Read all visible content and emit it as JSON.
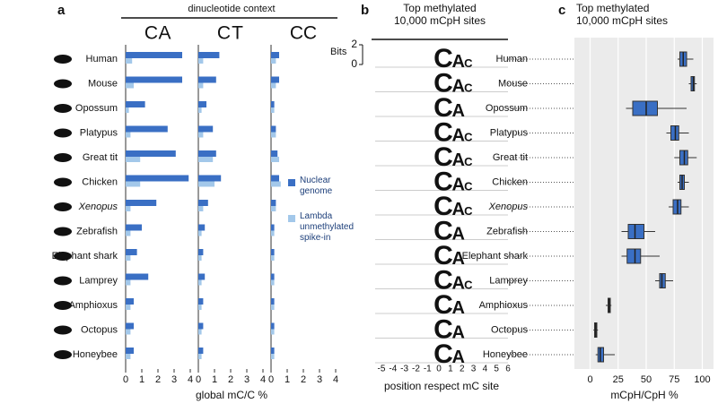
{
  "chart_data": [
    {
      "type": "bar",
      "panel_label": "a",
      "title": "dinucleotide context",
      "xlabel": "global mC/C %",
      "categories": [
        "Human",
        "Mouse",
        "Opossum",
        "Platypus",
        "Great tit",
        "Chicken",
        "Xenopus",
        "Zebrafish",
        "Elephant shark",
        "Lamprey",
        "Amphioxus",
        "Octopus",
        "Honeybee"
      ],
      "italic_categories": [
        "Xenopus"
      ],
      "series": [
        {
          "name": "Nuclear genome",
          "color": "#3a6fc4"
        },
        {
          "name": "Lambda unmethylated spike-in",
          "color": "#a3c8ea"
        }
      ],
      "xlim": [
        0,
        4
      ],
      "xticks": [
        0,
        1,
        2,
        3,
        4
      ],
      "facets": [
        {
          "letters": [
            "C",
            "A"
          ],
          "letter_colors": [
            "#3b5ba8",
            "#2e9c3a"
          ],
          "values": [
            [
              3.5,
              3.5,
              1.2,
              2.6,
              3.1,
              3.9,
              1.9,
              1.0,
              0.7,
              1.4,
              0.5,
              0.5,
              0.5
            ],
            [
              0.4,
              0.5,
              0.2,
              0.3,
              0.9,
              0.9,
              0.3,
              0.3,
              0.3,
              0.3,
              0.3,
              0.3,
              0.3
            ]
          ]
        },
        {
          "letters": [
            "C",
            "T"
          ],
          "letter_colors": [
            "#3b5ba8",
            "#d62728"
          ],
          "values": [
            [
              1.3,
              1.1,
              0.5,
              0.9,
              1.1,
              1.4,
              0.6,
              0.4,
              0.3,
              0.4,
              0.3,
              0.3,
              0.3
            ],
            [
              0.3,
              0.3,
              0.2,
              0.3,
              0.9,
              1.0,
              0.3,
              0.2,
              0.2,
              0.2,
              0.2,
              0.2,
              0.2
            ]
          ]
        },
        {
          "letters": [
            "C",
            "C"
          ],
          "letter_colors": [
            "#3b5ba8",
            "#3b5ba8"
          ],
          "values": [
            [
              0.5,
              0.5,
              0.2,
              0.3,
              0.4,
              0.5,
              0.3,
              0.2,
              0.2,
              0.2,
              0.2,
              0.2,
              0.2
            ],
            [
              0.3,
              0.3,
              0.2,
              0.3,
              0.5,
              0.6,
              0.3,
              0.2,
              0.2,
              0.2,
              0.2,
              0.2,
              0.2
            ]
          ]
        }
      ]
    },
    {
      "type": "logo",
      "panel_label": "b",
      "title": [
        "Top methylated",
        "10,000 mCpH sites"
      ],
      "ylabel": "Bits",
      "ylim": [
        0,
        2
      ],
      "yticks": [
        0,
        2
      ],
      "xlabel": "position respect mC site",
      "xlim": [
        -5,
        6
      ],
      "xticks": [
        -5,
        -4,
        -3,
        -2,
        -1,
        0,
        1,
        2,
        3,
        4,
        5,
        6
      ],
      "letter_colors": {
        "C": "#3b5ba8",
        "A": "#2e9c3a",
        "T": "#d62728"
      },
      "rows": [
        [
          "C",
          "A",
          "C"
        ],
        [
          "C",
          "A",
          "C"
        ],
        [
          "C",
          "A"
        ],
        [
          "C",
          "A",
          "C"
        ],
        [
          "C",
          "A",
          "C"
        ],
        [
          "C",
          "A",
          "C"
        ],
        [
          "C",
          "A",
          "C"
        ],
        [
          "C",
          "A"
        ],
        [
          "C",
          "A"
        ],
        [
          "C",
          "A",
          "C"
        ],
        [
          "C",
          "A"
        ],
        [
          "C",
          "A"
        ],
        [
          "C",
          "A"
        ]
      ]
    },
    {
      "type": "box",
      "panel_label": "c",
      "title": [
        "Top methylated",
        "10,000 mCpH sites"
      ],
      "xlabel": "mCpH/CpH %",
      "categories": [
        "Human",
        "Mouse",
        "Opossum",
        "Platypus",
        "Great tit",
        "Chicken",
        "Xenopus",
        "Zebrafish",
        "Elephant shark",
        "Lamprey",
        "Amphioxus",
        "Octopus",
        "Honeybee"
      ],
      "italic_categories": [
        "Xenopus"
      ],
      "color": "#3a6fc4",
      "xlim": [
        -14,
        110
      ],
      "xticks": [
        0,
        25,
        50,
        75,
        100
      ],
      "grid": true,
      "boxes": [
        {
          "min": 78,
          "q1": 80,
          "median": 83,
          "q3": 86,
          "max": 92
        },
        {
          "min": 88,
          "q1": 90,
          "median": 92,
          "q3": 93,
          "max": 95
        },
        {
          "min": 32,
          "q1": 38,
          "median": 50,
          "q3": 60,
          "max": 86
        },
        {
          "min": 68,
          "q1": 72,
          "median": 76,
          "q3": 79,
          "max": 88
        },
        {
          "min": 75,
          "q1": 80,
          "median": 84,
          "q3": 87,
          "max": 95
        },
        {
          "min": 78,
          "q1": 80,
          "median": 82,
          "q3": 84,
          "max": 88
        },
        {
          "min": 70,
          "q1": 74,
          "median": 78,
          "q3": 81,
          "max": 88
        },
        {
          "min": 28,
          "q1": 34,
          "median": 40,
          "q3": 48,
          "max": 58
        },
        {
          "min": 28,
          "q1": 33,
          "median": 40,
          "q3": 45,
          "max": 62
        },
        {
          "min": 58,
          "q1": 62,
          "median": 64,
          "q3": 67,
          "max": 74
        },
        {
          "min": 14,
          "q1": 16,
          "median": 17,
          "q3": 18,
          "max": 19
        },
        {
          "min": 3,
          "q1": 4,
          "median": 5,
          "q3": 6,
          "max": 7
        },
        {
          "min": 5,
          "q1": 7,
          "median": 9,
          "q3": 12,
          "max": 22
        }
      ]
    }
  ]
}
